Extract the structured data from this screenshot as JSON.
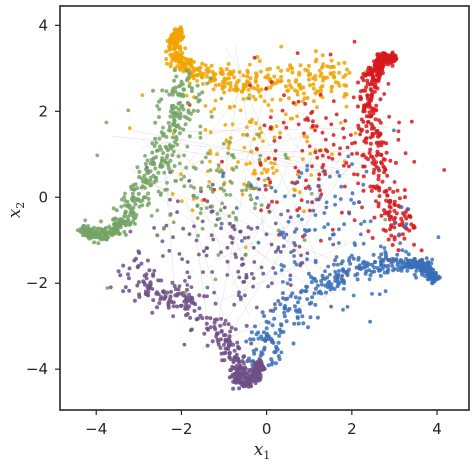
{
  "chart_data": {
    "type": "scatter",
    "title": "",
    "xlabel": {
      "base": "x",
      "sub": "1"
    },
    "ylabel": {
      "base": "x",
      "sub": "2"
    },
    "xlim": [
      -4.85,
      4.75
    ],
    "ylim": [
      -4.95,
      4.45
    ],
    "xticks": [
      -4,
      -2,
      0,
      2,
      4
    ],
    "yticks": [
      -4,
      -2,
      0,
      2,
      4
    ],
    "xtick_labels": [
      "−4",
      "−2",
      "0",
      "2",
      "4"
    ],
    "ytick_labels": [
      "−4",
      "−2",
      "0",
      "2",
      "4"
    ],
    "grid": false,
    "legend": "none",
    "series": [
      {
        "color": "#f0a500",
        "arm": [
          [
            -2.05,
            3.85
          ],
          [
            -2.2,
            3.6
          ],
          [
            -2.1,
            3.2
          ],
          [
            -1.8,
            2.95
          ],
          [
            -1.3,
            2.8
          ],
          [
            -0.7,
            2.72
          ],
          [
            0,
            2.68
          ],
          [
            0.7,
            2.7
          ],
          [
            1.3,
            2.75
          ],
          [
            1.9,
            2.85
          ]
        ],
        "interior_center": [
          -0.3,
          1.4
        ]
      },
      {
        "color": "#d7191c",
        "arm": [
          [
            3.0,
            3.25
          ],
          [
            2.7,
            3.2
          ],
          [
            2.5,
            2.9
          ],
          [
            2.4,
            2.4
          ],
          [
            2.4,
            1.8
          ],
          [
            2.5,
            1.2
          ],
          [
            2.6,
            0.6
          ],
          [
            2.8,
            0.0
          ],
          [
            3.0,
            -0.5
          ],
          [
            3.2,
            -0.95
          ]
        ],
        "interior_center": [
          1.2,
          1.0
        ]
      },
      {
        "color": "#3a6fb7",
        "arm": [
          [
            3.95,
            -1.9
          ],
          [
            3.7,
            -1.6
          ],
          [
            3.2,
            -1.55
          ],
          [
            2.6,
            -1.55
          ],
          [
            2.0,
            -1.7
          ],
          [
            1.4,
            -2.0
          ],
          [
            0.8,
            -2.4
          ],
          [
            0.3,
            -2.9
          ],
          [
            -0.05,
            -3.4
          ],
          [
            -0.2,
            -3.6
          ]
        ],
        "interior_center": [
          1.4,
          -0.9
        ]
      },
      {
        "color": "#6f4f86",
        "arm": [
          [
            -0.15,
            -3.9
          ],
          [
            -0.3,
            -4.2
          ],
          [
            -0.6,
            -4.3
          ],
          [
            -0.7,
            -3.9
          ],
          [
            -0.9,
            -3.4
          ],
          [
            -1.3,
            -2.9
          ],
          [
            -1.8,
            -2.5
          ],
          [
            -2.4,
            -2.25
          ],
          [
            -2.9,
            -2.0
          ],
          [
            -3.3,
            -1.6
          ]
        ],
        "interior_center": [
          -0.8,
          -1.3
        ]
      },
      {
        "color": "#74a365",
        "arm": [
          [
            -4.3,
            -0.78
          ],
          [
            -3.9,
            -0.9
          ],
          [
            -3.5,
            -0.65
          ],
          [
            -3.2,
            -0.3
          ],
          [
            -2.9,
            0.2
          ],
          [
            -2.6,
            0.8
          ],
          [
            -2.3,
            1.4
          ],
          [
            -2.15,
            1.9
          ],
          [
            -2.0,
            2.3
          ],
          [
            -1.9,
            2.65
          ]
        ],
        "interior_center": [
          -1.5,
          0.3
        ]
      }
    ]
  }
}
